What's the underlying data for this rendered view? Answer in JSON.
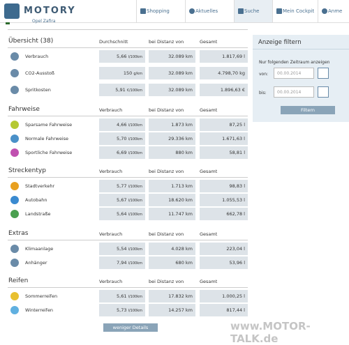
{
  "header": {
    "logo": "MOTORY",
    "nav": [
      "Shopping",
      "Aktuelles",
      "Suche",
      "Mein Cockpit",
      "Anme"
    ],
    "vehicle": "Opel Zafira"
  },
  "sections": [
    {
      "title": "Übersicht (38)",
      "columns": [
        "Durchschnitt",
        "bei Distanz von",
        "Gesamt"
      ],
      "rows": [
        {
          "label": "Verbrauch",
          "avg": "5,66",
          "unit": "l/100km",
          "distance": "32.089 km",
          "total": "1.817,69 l"
        },
        {
          "label": "CO2-Ausstoß",
          "avg": "150",
          "unit": "g/km",
          "distance": "32.089 km",
          "total": "4.798,70 kg"
        },
        {
          "label": "Spritkosten",
          "avg": "5,91",
          "unit": "€/100km",
          "distance": "32.089 km",
          "total": "1.896,63 €"
        }
      ]
    },
    {
      "title": "Fahrweise",
      "columns": [
        "Verbrauch",
        "bei Distanz von",
        "Gesamt"
      ],
      "rows": [
        {
          "label": "Sparsame Fahrweise",
          "avg": "4,66",
          "unit": "l/100km",
          "distance": "1.873 km",
          "total": "87,25 l"
        },
        {
          "label": "Normale Fahrweise",
          "avg": "5,70",
          "unit": "l/100km",
          "distance": "29.336 km",
          "total": "1.671,63 l"
        },
        {
          "label": "Sportliche Fahrweise",
          "avg": "6,69",
          "unit": "l/100km",
          "distance": "880 km",
          "total": "58,81 l"
        }
      ]
    },
    {
      "title": "Streckentyp",
      "columns": [
        "Verbrauch",
        "bei Distanz von",
        "Gesamt"
      ],
      "rows": [
        {
          "label": "Stadtverkehr",
          "avg": "5,77",
          "unit": "l/100km",
          "distance": "1.713 km",
          "total": "98,83 l"
        },
        {
          "label": "Autobahn",
          "avg": "5,67",
          "unit": "l/100km",
          "distance": "18.620 km",
          "total": "1.055,53 l"
        },
        {
          "label": "Landstraße",
          "avg": "5,64",
          "unit": "l/100km",
          "distance": "11.747 km",
          "total": "662,78 l"
        }
      ]
    },
    {
      "title": "Extras",
      "columns": [
        "Verbrauch",
        "bei Distanz von",
        "Gesamt"
      ],
      "rows": [
        {
          "label": "Klimaanlage",
          "avg": "5,54",
          "unit": "l/100km",
          "distance": "4.028 km",
          "total": "223,04 l"
        },
        {
          "label": "Anhänger",
          "avg": "7,94",
          "unit": "l/100km",
          "distance": "680 km",
          "total": "53,96 l"
        }
      ]
    },
    {
      "title": "Reifen",
      "columns": [
        "Verbrauch",
        "bei Distanz von",
        "Gesamt"
      ],
      "rows": [
        {
          "label": "Sommerreifen",
          "avg": "5,61",
          "unit": "l/100km",
          "distance": "17.832 km",
          "total": "1.000,25 l"
        },
        {
          "label": "Winterreifen",
          "avg": "5,73",
          "unit": "l/100km",
          "distance": "14.257 km",
          "total": "817,44 l"
        }
      ]
    }
  ],
  "details_button": "weniger Details",
  "filter": {
    "title": "Anzeige filtern",
    "hint": "Nur folgenden Zeitraum anzeigen",
    "from_label": "von:",
    "from_value": "00.00.2014",
    "to_label": "bis:",
    "to_value": "00.00.2014",
    "button": "Filtern"
  },
  "watermark": "www.MOTOR-TALK.de"
}
